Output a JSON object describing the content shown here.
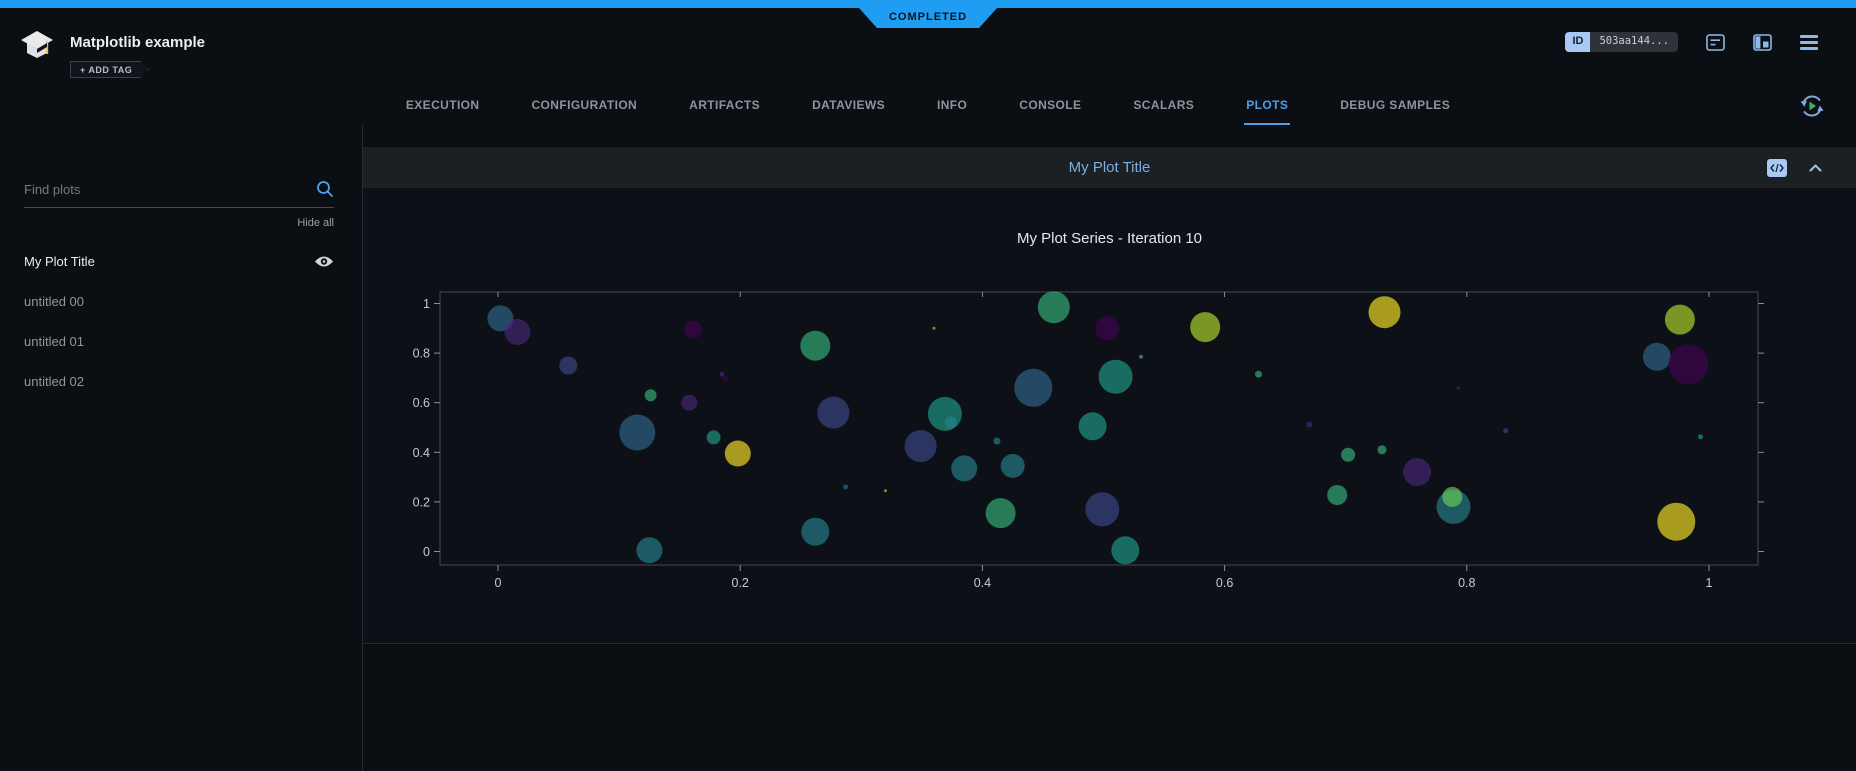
{
  "status_banner": {
    "label": "COMPLETED",
    "color": "#1e9df2"
  },
  "header": {
    "app_title": "Matplotlib example",
    "add_tag_label": "+ ADD TAG",
    "id_label": "ID",
    "id_value": "503aa144..."
  },
  "tabs": {
    "items": [
      "EXECUTION",
      "CONFIGURATION",
      "ARTIFACTS",
      "DATAVIEWS",
      "INFO",
      "CONSOLE",
      "SCALARS",
      "PLOTS",
      "DEBUG SAMPLES"
    ],
    "active": "PLOTS",
    "active_color": "#4e9fe5"
  },
  "sidebar": {
    "search_placeholder": "Find plots",
    "hide_all_label": "Hide all",
    "items": [
      {
        "label": "My Plot Title",
        "active": true,
        "visible": true
      },
      {
        "label": "untitled 00",
        "active": false,
        "visible": false
      },
      {
        "label": "untitled 01",
        "active": false,
        "visible": false
      },
      {
        "label": "untitled 02",
        "active": false,
        "visible": false
      }
    ]
  },
  "plot_panel": {
    "title": "My Plot Title"
  },
  "icons": {
    "code_chip": "</>"
  },
  "chart_data": {
    "type": "scatter",
    "title": "My Plot Series - Iteration 10",
    "xlabel": "",
    "ylabel": "",
    "xlim": [
      -0.05,
      1.04
    ],
    "ylim": [
      -0.055,
      1.045
    ],
    "x_ticks": [
      "0",
      "0.2",
      "0.4",
      "0.6",
      "0.8",
      "1"
    ],
    "y_ticks": [
      "0",
      "0.2",
      "0.4",
      "0.6",
      "0.8",
      "1"
    ],
    "grid": false,
    "legend": "none",
    "marker_opacity": 0.65,
    "palette": {
      "v0": "#440154",
      "v1": "#482878",
      "v2": "#3e4989",
      "v3": "#31688e",
      "v4": "#26828e",
      "v5": "#1f9e89",
      "v6": "#35b779",
      "v7": "#6ece58",
      "v8": "#b5de2b",
      "v9": "#fde725"
    },
    "points_format": [
      "x",
      "y",
      "marker_radius_px",
      "color_key"
    ],
    "points": [
      [
        0.002,
        0.94,
        13,
        "v3"
      ],
      [
        0.016,
        0.885,
        13,
        "v1"
      ],
      [
        0.058,
        0.75,
        9,
        "v2"
      ],
      [
        0.126,
        0.63,
        6,
        "v6"
      ],
      [
        0.115,
        0.48,
        18,
        "v3"
      ],
      [
        0.161,
        0.895,
        9,
        "v0"
      ],
      [
        0.158,
        0.6,
        8,
        "v1"
      ],
      [
        0.185,
        0.715,
        2.5,
        "v1"
      ],
      [
        0.188,
        0.695,
        3,
        "v0"
      ],
      [
        0.178,
        0.46,
        7,
        "v5"
      ],
      [
        0.198,
        0.395,
        13,
        "v9"
      ],
      [
        0.262,
        0.83,
        15,
        "v6"
      ],
      [
        0.277,
        0.56,
        16,
        "v2"
      ],
      [
        0.287,
        0.26,
        2.5,
        "v3"
      ],
      [
        0.262,
        0.08,
        14,
        "v4"
      ],
      [
        0.125,
        0.005,
        13,
        "v4"
      ],
      [
        0.36,
        0.9,
        1.5,
        "v8"
      ],
      [
        0.32,
        0.245,
        1.5,
        "v8"
      ],
      [
        0.459,
        0.985,
        16,
        "v6"
      ],
      [
        0.503,
        0.9,
        12,
        "v0"
      ],
      [
        0.584,
        0.905,
        15,
        "v8"
      ],
      [
        0.531,
        0.785,
        2,
        "v6"
      ],
      [
        0.51,
        0.705,
        17,
        "v5"
      ],
      [
        0.442,
        0.66,
        19,
        "v3"
      ],
      [
        0.369,
        0.555,
        17,
        "v5"
      ],
      [
        0.374,
        0.52,
        6,
        "v4"
      ],
      [
        0.349,
        0.425,
        16,
        "v2"
      ],
      [
        0.491,
        0.505,
        14,
        "v5"
      ],
      [
        0.412,
        0.445,
        3.5,
        "v4"
      ],
      [
        0.385,
        0.335,
        13,
        "v4"
      ],
      [
        0.425,
        0.345,
        12,
        "v4"
      ],
      [
        0.415,
        0.155,
        15,
        "v6"
      ],
      [
        0.499,
        0.17,
        17,
        "v2"
      ],
      [
        0.518,
        0.005,
        14,
        "v5"
      ],
      [
        0.628,
        0.715,
        3.5,
        "v6"
      ],
      [
        0.67,
        0.512,
        3,
        "v1"
      ],
      [
        0.693,
        0.228,
        10,
        "v6"
      ],
      [
        0.732,
        0.965,
        16,
        "v9"
      ],
      [
        0.976,
        0.935,
        15,
        "v8"
      ],
      [
        0.957,
        0.785,
        14,
        "v3"
      ],
      [
        0.983,
        0.755,
        20,
        "v0"
      ],
      [
        0.702,
        0.39,
        7,
        "v6"
      ],
      [
        0.73,
        0.41,
        4.5,
        "v6"
      ],
      [
        0.759,
        0.32,
        14,
        "v1"
      ],
      [
        0.789,
        0.18,
        17,
        "v4"
      ],
      [
        0.788,
        0.22,
        10,
        "v7"
      ],
      [
        0.793,
        0.66,
        1.5,
        "v1"
      ],
      [
        0.832,
        0.487,
        2.5,
        "v2"
      ],
      [
        0.993,
        0.462,
        2.5,
        "v5"
      ],
      [
        0.973,
        0.12,
        19,
        "v9"
      ]
    ]
  }
}
